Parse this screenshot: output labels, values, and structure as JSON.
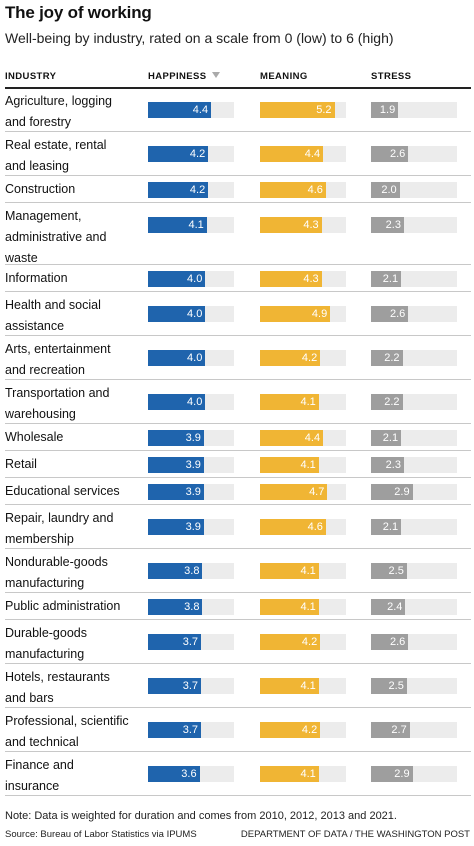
{
  "title": "The joy of working",
  "subtitle": "Well-being by industry, rated on a scale from 0 (low) to 6 (high)",
  "columns": {
    "industry": "INDUSTRY",
    "happiness": "HAPPINESS",
    "meaning": "MEANING",
    "stress": "STRESS"
  },
  "note": "Note: Data is weighted for duration and comes from 2010, 2012, 2013 and 2021.",
  "source": "Source: Bureau of Labor Statistics via IPUMS",
  "credit": "DEPARTMENT OF DATA / THE WASHINGTON POST",
  "colors": {
    "happiness": "#1f64ad",
    "meaning": "#f0b534",
    "stress": "#9e9e9e",
    "track": "#ececec"
  },
  "chart_data": {
    "type": "bar",
    "title": "The joy of working",
    "subtitle": "Well-being by industry, rated on a scale from 0 (low) to 6 (high)",
    "ylim": [
      0,
      6
    ],
    "sorted_by": "happiness",
    "categories": [
      [
        "Agriculture, logging",
        "and forestry"
      ],
      [
        "Real estate, rental",
        "and leasing"
      ],
      [
        "Construction"
      ],
      [
        "Management,",
        "administrative and",
        "waste"
      ],
      [
        "Information"
      ],
      [
        "Health and social",
        "assistance"
      ],
      [
        "Arts, entertainment",
        "and recreation"
      ],
      [
        "Transportation and",
        "warehousing"
      ],
      [
        "Wholesale"
      ],
      [
        "Retail"
      ],
      [
        "Educational services"
      ],
      [
        "Repair, laundry and",
        "membership"
      ],
      [
        "Nondurable-goods",
        "manufacturing"
      ],
      [
        "Public administration"
      ],
      [
        "Durable-goods",
        "manufacturing"
      ],
      [
        "Hotels, restaurants",
        "and bars"
      ],
      [
        "Professional, scientific",
        "and technical"
      ],
      [
        "Finance and",
        "insurance"
      ]
    ],
    "series": [
      {
        "name": "HAPPINESS",
        "values": [
          4.4,
          4.2,
          4.2,
          4.1,
          4.0,
          4.0,
          4.0,
          4.0,
          3.9,
          3.9,
          3.9,
          3.9,
          3.8,
          3.8,
          3.7,
          3.7,
          3.7,
          3.6
        ]
      },
      {
        "name": "MEANING",
        "values": [
          5.2,
          4.4,
          4.6,
          4.3,
          4.3,
          4.9,
          4.2,
          4.1,
          4.4,
          4.1,
          4.7,
          4.6,
          4.1,
          4.1,
          4.2,
          4.1,
          4.2,
          4.1
        ]
      },
      {
        "name": "STRESS",
        "values": [
          1.9,
          2.6,
          2.0,
          2.3,
          2.1,
          2.6,
          2.2,
          2.2,
          2.1,
          2.3,
          2.9,
          2.1,
          2.5,
          2.4,
          2.6,
          2.5,
          2.7,
          2.9
        ]
      }
    ]
  }
}
